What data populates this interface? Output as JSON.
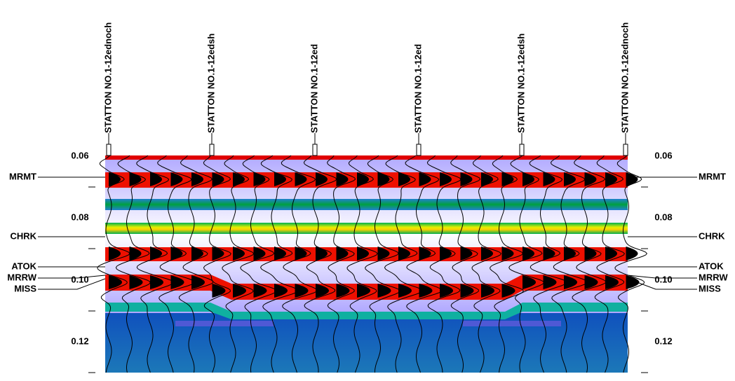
{
  "wells": [
    "STATTON NO.1-12ednoch",
    "STATTON NO.1-12edsh",
    "STATTON NO.1-12ed",
    "STATTON NO.1-12ed",
    "STATTON NO.1-12edsh",
    "STATTON NO.1-12ednoch"
  ],
  "time_axis": {
    "ticks": [
      "0.06",
      "0.08",
      "0.10",
      "0.12"
    ]
  },
  "horizons": [
    "MRMT",
    "CHRK",
    "ATOK",
    "MRRW",
    "MISS"
  ]
}
